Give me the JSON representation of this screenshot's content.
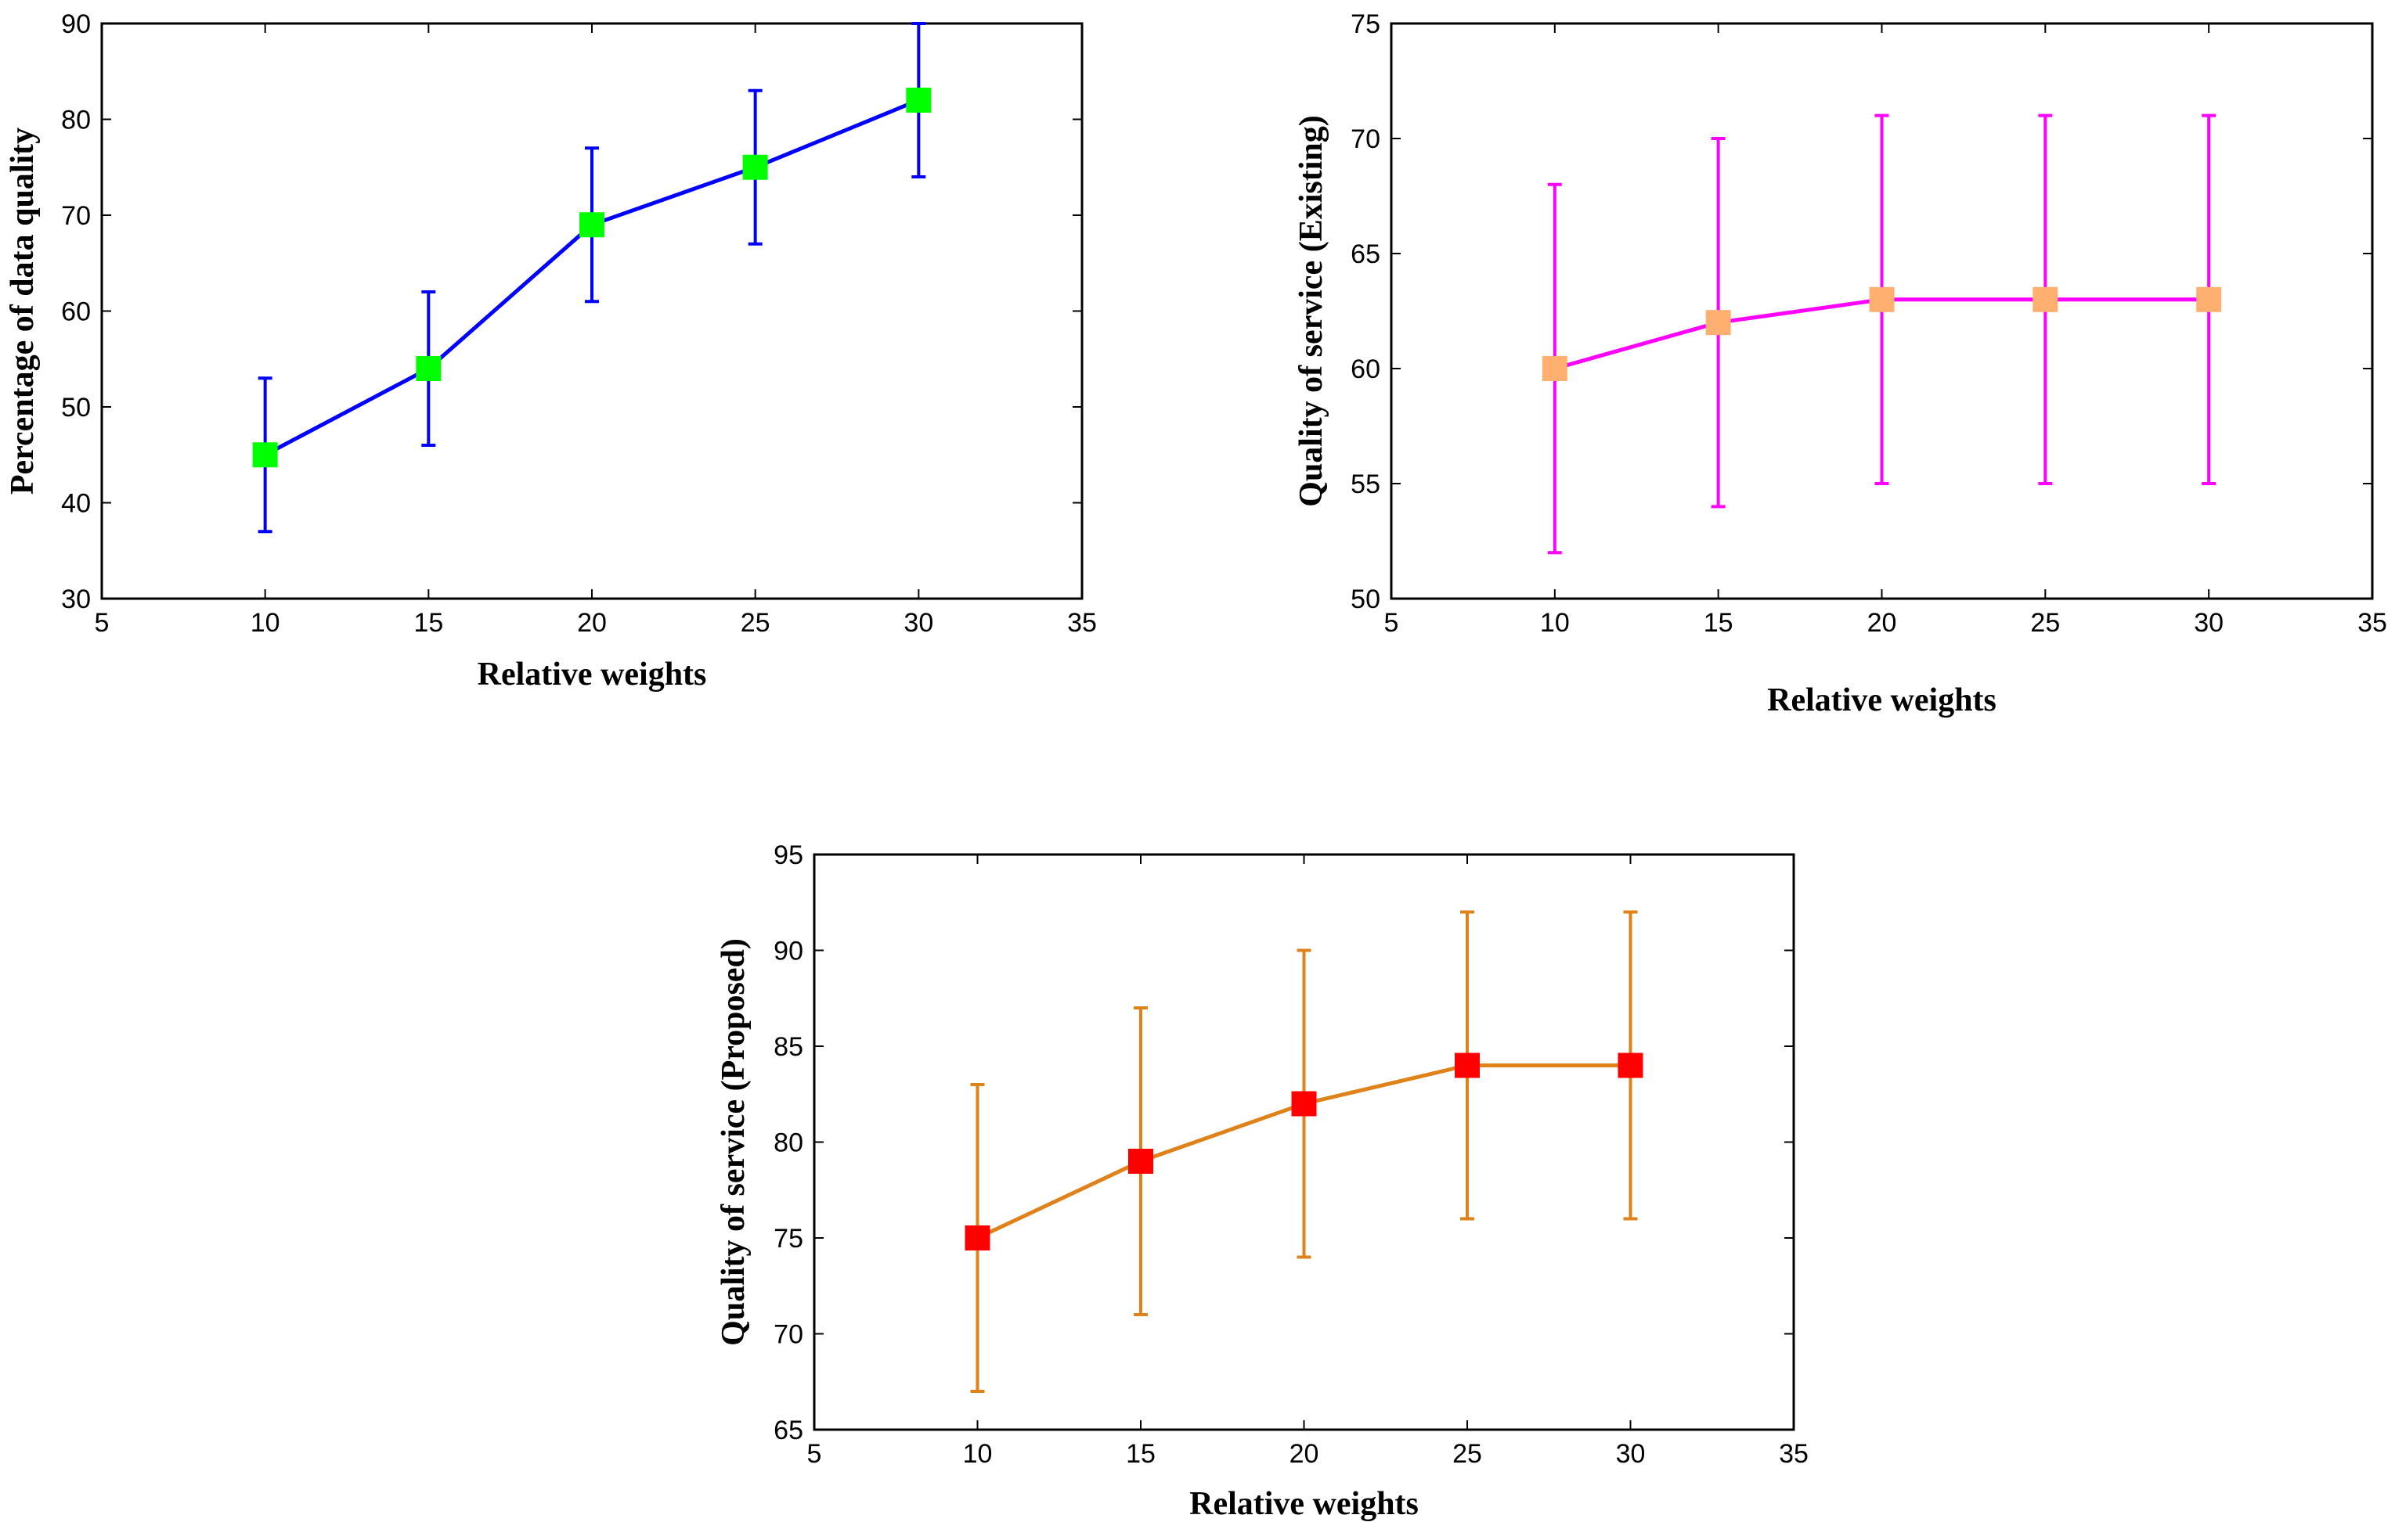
{
  "chart_data": [
    {
      "type": "line",
      "title": "",
      "xlabel": "Relative weights",
      "ylabel": "Percentage of data quality",
      "xlim": [
        5,
        35
      ],
      "ylim": [
        30,
        90
      ],
      "xticks": [
        5,
        10,
        15,
        20,
        25,
        30,
        35
      ],
      "yticks": [
        30,
        40,
        50,
        60,
        70,
        80,
        90
      ],
      "grid": false,
      "line_color": "#0000ff",
      "marker_color": "#00ff00",
      "errorbar_color": "#0000ff",
      "series": [
        {
          "name": "Percentage of data quality",
          "x": [
            10,
            15,
            20,
            25,
            30
          ],
          "y": [
            45,
            54,
            69,
            75,
            82
          ],
          "error": [
            8,
            8,
            8,
            8,
            8
          ]
        }
      ]
    },
    {
      "type": "line",
      "title": "",
      "xlabel": "Relative weights",
      "ylabel": "Quality of service (Existing)",
      "xlim": [
        5,
        35
      ],
      "ylim": [
        50,
        75
      ],
      "xticks": [
        5,
        10,
        15,
        20,
        25,
        30,
        35
      ],
      "yticks": [
        50,
        55,
        60,
        65,
        70,
        75
      ],
      "grid": false,
      "line_color": "#ff00ff",
      "marker_color": "#ffb070",
      "errorbar_color": "#ff00ff",
      "series": [
        {
          "name": "Quality of service (Existing)",
          "x": [
            10,
            15,
            20,
            25,
            30
          ],
          "y": [
            60,
            62,
            63,
            63,
            63
          ],
          "error": [
            8,
            8,
            8,
            8,
            8
          ]
        }
      ]
    },
    {
      "type": "line",
      "title": "",
      "xlabel": "Relative weights",
      "ylabel": "Quality of service (Proposed)",
      "xlim": [
        5,
        35
      ],
      "ylim": [
        65,
        95
      ],
      "xticks": [
        5,
        10,
        15,
        20,
        25,
        30,
        35
      ],
      "yticks": [
        65,
        70,
        75,
        80,
        85,
        90,
        95
      ],
      "grid": false,
      "line_color": "#e0821a",
      "marker_color": "#ff0000",
      "errorbar_color": "#e0821a",
      "series": [
        {
          "name": "Quality of service (Proposed)",
          "x": [
            10,
            15,
            20,
            25,
            30
          ],
          "y": [
            75,
            79,
            82,
            84,
            84
          ],
          "error": [
            8,
            8,
            8,
            8,
            8
          ]
        }
      ]
    }
  ]
}
